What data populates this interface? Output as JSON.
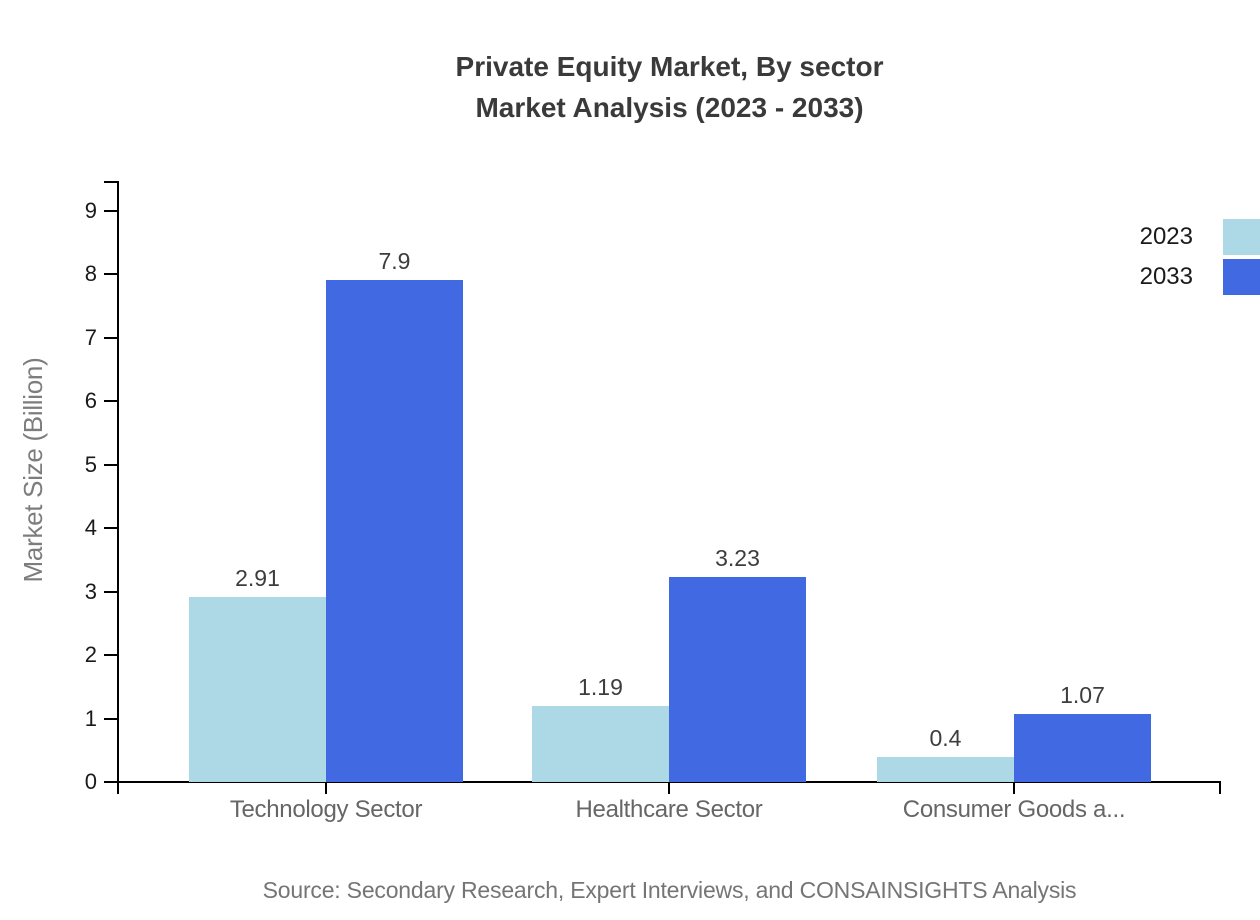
{
  "title": {
    "line1": "Private Equity Market, By sector",
    "line2": "Market Analysis (2023 - 2033)"
  },
  "source_text": "Source: Secondary Research, Expert Interviews, and CONSAINSIGHTS Analysis",
  "chart_data": {
    "type": "bar",
    "title": "Private Equity Market, By sector Market Analysis (2023 - 2033)",
    "categories": [
      "Technology Sector",
      "Healthcare Sector",
      "Consumer Goods a..."
    ],
    "series": [
      {
        "name": "2023",
        "color": "#ADD8E6",
        "values": [
          2.91,
          1.19,
          0.4
        ]
      },
      {
        "name": "2033",
        "color": "#4169E1",
        "values": [
          7.9,
          3.23,
          1.07
        ]
      }
    ],
    "value_labels": {
      "2023": [
        "2.91",
        "1.19",
        "0.4"
      ],
      "2033": [
        "7.9",
        "3.23",
        "1.07"
      ]
    },
    "xlabel": "",
    "ylabel": "Market Size (Billion)",
    "ylim": [
      0,
      9
    ],
    "yticks": [
      0,
      1,
      2,
      3,
      4,
      5,
      6,
      7,
      8,
      9
    ],
    "legend_position": "top-right",
    "grid": false
  },
  "colors": {
    "background": "#FFFFFF",
    "axis": "#000000",
    "title_text": "#3A3A3A",
    "tick_label_text": "#1A1A1A",
    "category_label_text": "#666666",
    "value_label_text": "#3D3D3D",
    "y_axis_title_text": "#7D7D7D",
    "source_text": "#757575",
    "series_2023": "#ADD8E6",
    "series_2033": "#4169E1"
  }
}
